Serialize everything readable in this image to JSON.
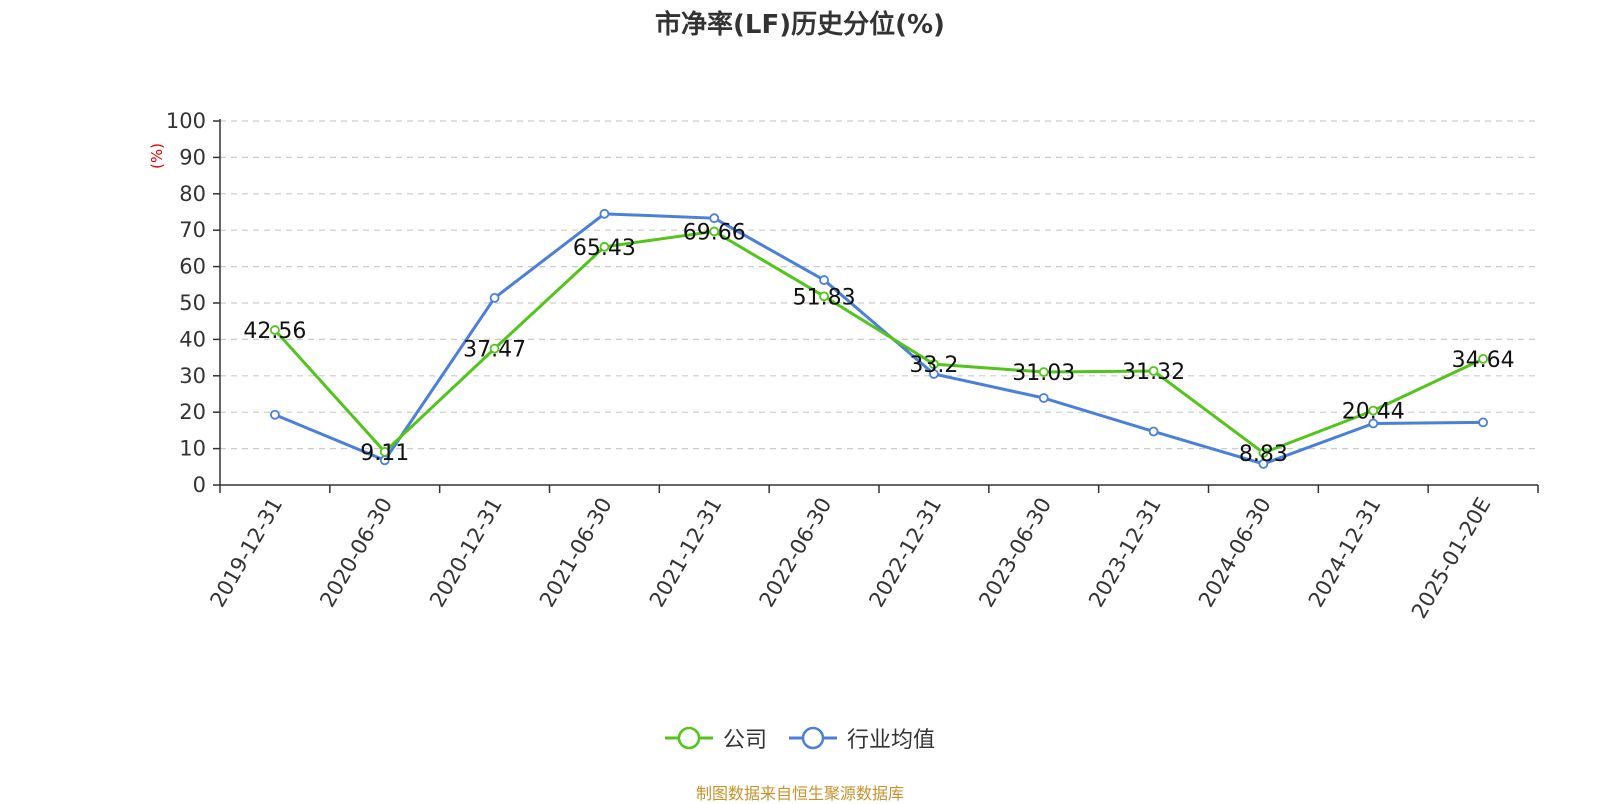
{
  "chart_data": {
    "type": "line",
    "title": "市净率(LF)历史分位(%)",
    "ylabel": "(%)",
    "xlabel": "",
    "ylim": [
      0,
      100
    ],
    "yticks": [
      0,
      10,
      20,
      30,
      40,
      50,
      60,
      70,
      80,
      90,
      100
    ],
    "grid": true,
    "legend_position": "bottom",
    "categories": [
      "2019-12-31",
      "2020-06-30",
      "2020-12-31",
      "2021-06-30",
      "2021-12-31",
      "2022-06-30",
      "2022-12-31",
      "2023-06-30",
      "2023-12-31",
      "2024-06-30",
      "2024-12-31",
      "2025-01-20E"
    ],
    "series": [
      {
        "name": "公司",
        "color": "#52c41a",
        "values": [
          42.56,
          9.11,
          37.47,
          65.43,
          69.66,
          51.83,
          33.2,
          31.03,
          31.32,
          8.83,
          20.44,
          34.64
        ],
        "data_labels": [
          "42.56",
          "9.11",
          "37.47",
          "65.43",
          "69.66",
          "51.83",
          "33.2",
          "31.03",
          "31.32",
          "8.83",
          "20.44",
          "34.64"
        ]
      },
      {
        "name": "行业均值",
        "color": "#4a7fdc",
        "values": [
          19.3,
          6.8,
          51.4,
          74.5,
          73.3,
          56.3,
          30.5,
          23.9,
          14.7,
          5.8,
          16.9,
          17.2
        ]
      }
    ],
    "source": "制图数据来自恒生聚源数据库"
  }
}
